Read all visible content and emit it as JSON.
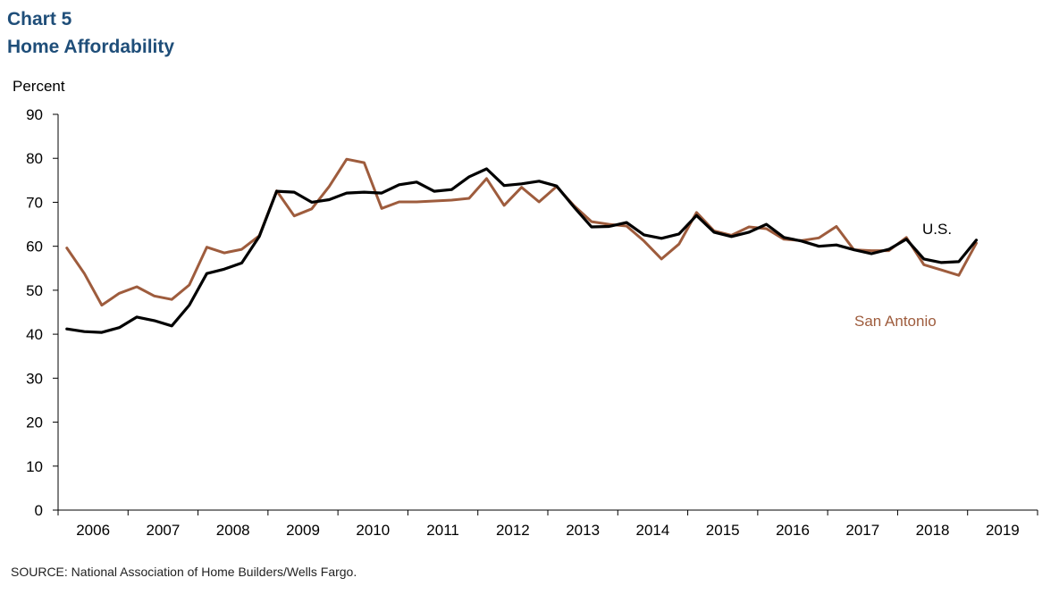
{
  "header": {
    "chart_number": "Chart 5",
    "title": "Home Affordability"
  },
  "source_note": "SOURCE:  National Association of Home Builders/Wells Fargo.",
  "colors": {
    "us": "#000000",
    "san_antonio": "#9e5c3d",
    "title": "#1f4e79"
  },
  "chart_data": {
    "type": "line",
    "title": "Home Affordability",
    "ylabel": "Percent",
    "xlabel": "",
    "ylim": [
      0,
      90
    ],
    "yticks": [
      0,
      10,
      20,
      30,
      40,
      50,
      60,
      70,
      80,
      90
    ],
    "xlim": [
      2006,
      2019
    ],
    "xticks": [
      "2006",
      "2007",
      "2008",
      "2009",
      "2010",
      "2011",
      "2012",
      "2013",
      "2014",
      "2015",
      "2016",
      "2017",
      "2018",
      "2019"
    ],
    "x_note": "quarterly observations, 2006 Q1 through 2019 Q1",
    "grid": false,
    "legend": "inline labels",
    "series": [
      {
        "name": "U.S.",
        "color": "#000000",
        "values": [
          41.2,
          40.6,
          40.4,
          41.5,
          43.9,
          43.1,
          41.9,
          46.6,
          53.8,
          54.8,
          56.2,
          62.2,
          72.5,
          72.3,
          70.0,
          70.6,
          72.1,
          72.3,
          72.1,
          74.0,
          74.6,
          72.5,
          72.9,
          75.8,
          77.6,
          73.8,
          74.2,
          74.8,
          73.7,
          68.9,
          64.4,
          64.5,
          65.4,
          62.6,
          61.8,
          62.8,
          67.0,
          63.2,
          62.2,
          63.2,
          65.0,
          62.0,
          61.2,
          60.0,
          60.3,
          59.2,
          58.3,
          59.3,
          61.6,
          57.1,
          56.3,
          56.5,
          61.4
        ]
      },
      {
        "name": "San Antonio",
        "color": "#9e5c3d",
        "values": [
          59.6,
          53.8,
          46.6,
          49.3,
          50.8,
          48.7,
          47.9,
          51.2,
          59.8,
          58.5,
          59.3,
          62.4,
          72.6,
          66.9,
          68.5,
          73.6,
          79.8,
          79.0,
          68.6,
          70.1,
          70.1,
          70.3,
          70.5,
          70.9,
          75.4,
          69.3,
          73.4,
          70.1,
          73.6,
          69.2,
          65.6,
          65.0,
          64.6,
          61.2,
          57.1,
          60.5,
          67.7,
          63.5,
          62.5,
          64.4,
          64.0,
          61.6,
          61.3,
          61.9,
          64.5,
          59.2,
          59.0,
          59.0,
          62.0,
          55.8,
          54.6,
          53.4,
          60.7
        ]
      }
    ],
    "annotations": [
      "U.S.",
      "San Antonio"
    ]
  }
}
